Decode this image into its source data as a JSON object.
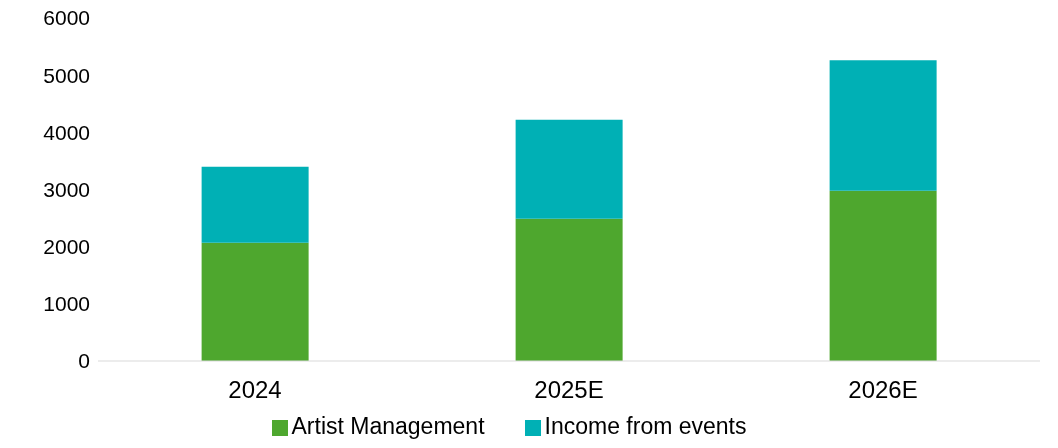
{
  "chart_data": {
    "type": "bar",
    "stacked": true,
    "categories": [
      "2024",
      "2025E",
      "2026E"
    ],
    "series": [
      {
        "name": "Artist Management",
        "color": "#4ea72e",
        "values": [
          2070,
          2490,
          2980
        ]
      },
      {
        "name": "Income from events",
        "color": "#00b0b5",
        "values": [
          1330,
          1730,
          2280
        ]
      }
    ],
    "ylim": [
      0,
      6000
    ],
    "yticks": [
      0,
      1000,
      2000,
      3000,
      4000,
      5000,
      6000
    ],
    "grid": false,
    "legend": "bottom"
  }
}
